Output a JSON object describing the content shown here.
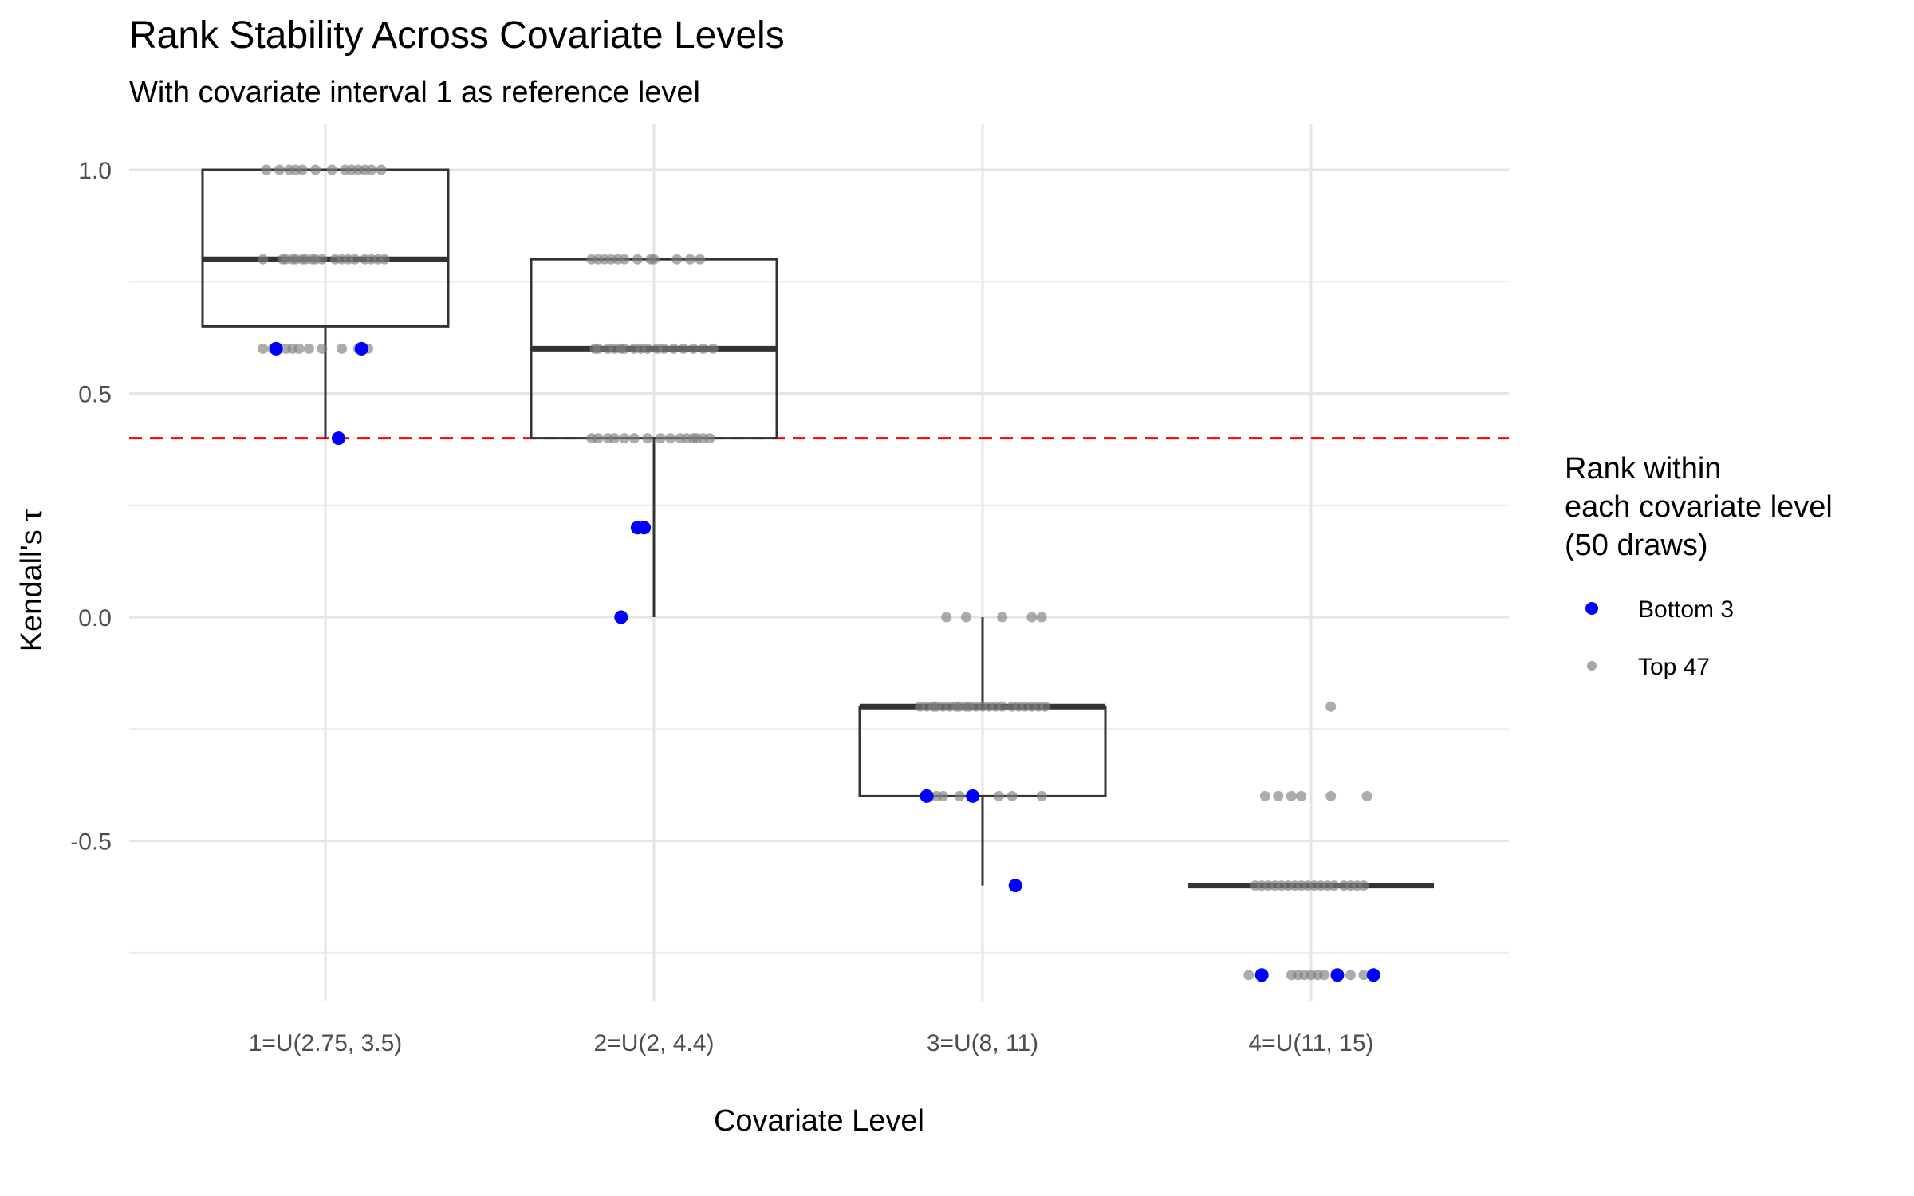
{
  "chart_data": {
    "type": "boxplot",
    "title": "Rank Stability Across Covariate Levels",
    "subtitle": "With covariate interval 1 as reference level",
    "xlabel": "Covariate Level",
    "ylabel": "Kendall's τ",
    "ylim": [
      -0.85,
      1.05
    ],
    "yticks": [
      1.0,
      0.5,
      0.0,
      -0.5
    ],
    "ytick_labels": [
      "1.0",
      "0.5",
      "0.0",
      "-0.5"
    ],
    "minor_yticks": [
      0.75,
      0.25,
      -0.25,
      -0.75
    ],
    "grid": true,
    "reference_line": {
      "y": 0.4,
      "color": "#ff0000",
      "style": "dashed"
    },
    "categories": [
      "1=U(2.75, 3.5)",
      "2=U(2, 4.4)",
      "3=U(8, 11)",
      "4=U(11, 15)"
    ],
    "boxes": [
      {
        "q1": 0.65,
        "median": 0.8,
        "q3": 1.0,
        "whisker_low": 0.4,
        "whisker_high": 1.0
      },
      {
        "q1": 0.4,
        "median": 0.6,
        "q3": 0.8,
        "whisker_low": 0.0,
        "whisker_high": 0.8
      },
      {
        "q1": -0.4,
        "median": -0.2,
        "q3": -0.2,
        "whisker_low": -0.6,
        "whisker_high": 0.0
      },
      {
        "q1": -0.6,
        "median": -0.6,
        "q3": -0.6,
        "whisker_low": -0.6,
        "whisker_high": -0.6
      }
    ],
    "legend": {
      "title": [
        "Rank within",
        "each covariate level",
        "(50 draws)"
      ],
      "placement": "right",
      "entries": [
        {
          "label": "Bottom 3",
          "color": "#0000ff"
        },
        {
          "label": "Top 47",
          "color": "#808080"
        }
      ]
    },
    "series": [
      {
        "name": "Bottom 3",
        "color": "#0000ff",
        "points": [
          [
            1,
            0.6,
            -0.15
          ],
          [
            1,
            0.6,
            0.11
          ],
          [
            1,
            0.4,
            0.04
          ],
          [
            2,
            0.2,
            -0.05
          ],
          [
            2,
            0.2,
            -0.03
          ],
          [
            2,
            0.0,
            -0.1
          ],
          [
            3,
            -0.4,
            -0.17
          ],
          [
            3,
            -0.4,
            -0.03
          ],
          [
            3,
            -0.6,
            0.1
          ],
          [
            4,
            -0.8,
            -0.15
          ],
          [
            4,
            -0.8,
            0.08
          ],
          [
            4,
            -0.8,
            0.19
          ]
        ]
      },
      {
        "name": "Top 47",
        "color": "#808080",
        "points": [
          [
            1,
            1.0,
            -0.18
          ],
          [
            1,
            1.0,
            -0.14
          ],
          [
            1,
            1.0,
            -0.11
          ],
          [
            1,
            1.0,
            -0.09
          ],
          [
            1,
            1.0,
            -0.07
          ],
          [
            1,
            1.0,
            -0.03
          ],
          [
            1,
            1.0,
            0.02
          ],
          [
            1,
            1.0,
            0.06
          ],
          [
            1,
            1.0,
            0.08
          ],
          [
            1,
            1.0,
            0.1
          ],
          [
            1,
            1.0,
            0.12
          ],
          [
            1,
            1.0,
            0.14
          ],
          [
            1,
            1.0,
            0.17
          ],
          [
            1,
            0.8,
            -0.19
          ],
          [
            1,
            0.8,
            -0.13
          ],
          [
            1,
            0.8,
            -0.12
          ],
          [
            1,
            0.8,
            -0.1
          ],
          [
            1,
            0.8,
            -0.09
          ],
          [
            1,
            0.8,
            -0.07
          ],
          [
            1,
            0.8,
            -0.06
          ],
          [
            1,
            0.8,
            -0.04
          ],
          [
            1,
            0.8,
            -0.03
          ],
          [
            1,
            0.8,
            -0.01
          ],
          [
            1,
            0.8,
            0.03
          ],
          [
            1,
            0.8,
            0.05
          ],
          [
            1,
            0.8,
            0.07
          ],
          [
            1,
            0.8,
            0.09
          ],
          [
            1,
            0.8,
            0.12
          ],
          [
            1,
            0.8,
            0.14
          ],
          [
            1,
            0.8,
            0.16
          ],
          [
            1,
            0.8,
            0.18
          ],
          [
            1,
            0.6,
            -0.19
          ],
          [
            1,
            0.6,
            -0.16
          ],
          [
            1,
            0.6,
            -0.12
          ],
          [
            1,
            0.6,
            -0.1
          ],
          [
            1,
            0.6,
            -0.08
          ],
          [
            1,
            0.6,
            -0.05
          ],
          [
            1,
            0.6,
            -0.01
          ],
          [
            1,
            0.6,
            0.05
          ],
          [
            1,
            0.6,
            0.1
          ],
          [
            1,
            0.6,
            0.13
          ],
          [
            2,
            0.8,
            -0.19
          ],
          [
            2,
            0.8,
            -0.17
          ],
          [
            2,
            0.8,
            -0.15
          ],
          [
            2,
            0.8,
            -0.13
          ],
          [
            2,
            0.8,
            -0.11
          ],
          [
            2,
            0.8,
            -0.09
          ],
          [
            2,
            0.8,
            -0.05
          ],
          [
            2,
            0.8,
            -0.01
          ],
          [
            2,
            0.8,
            0.0
          ],
          [
            2,
            0.8,
            0.07
          ],
          [
            2,
            0.8,
            0.11
          ],
          [
            2,
            0.8,
            0.14
          ],
          [
            2,
            0.6,
            -0.18
          ],
          [
            2,
            0.6,
            -0.17
          ],
          [
            2,
            0.6,
            -0.14
          ],
          [
            2,
            0.6,
            -0.12
          ],
          [
            2,
            0.6,
            -0.1
          ],
          [
            2,
            0.6,
            -0.09
          ],
          [
            2,
            0.6,
            -0.06
          ],
          [
            2,
            0.6,
            -0.04
          ],
          [
            2,
            0.6,
            -0.02
          ],
          [
            2,
            0.6,
            0.01
          ],
          [
            2,
            0.6,
            0.03
          ],
          [
            2,
            0.6,
            0.06
          ],
          [
            2,
            0.6,
            0.09
          ],
          [
            2,
            0.6,
            0.12
          ],
          [
            2,
            0.6,
            0.15
          ],
          [
            2,
            0.6,
            0.18
          ],
          [
            2,
            0.4,
            -0.19
          ],
          [
            2,
            0.4,
            -0.17
          ],
          [
            2,
            0.4,
            -0.14
          ],
          [
            2,
            0.4,
            -0.12
          ],
          [
            2,
            0.4,
            -0.09
          ],
          [
            2,
            0.4,
            -0.06
          ],
          [
            2,
            0.4,
            -0.02
          ],
          [
            2,
            0.4,
            0.02
          ],
          [
            2,
            0.4,
            0.05
          ],
          [
            2,
            0.4,
            0.08
          ],
          [
            2,
            0.4,
            0.1
          ],
          [
            2,
            0.4,
            0.12
          ],
          [
            2,
            0.4,
            0.13
          ],
          [
            2,
            0.4,
            0.15
          ],
          [
            2,
            0.4,
            0.17
          ],
          [
            3,
            0.0,
            -0.11
          ],
          [
            3,
            0.0,
            -0.05
          ],
          [
            3,
            0.0,
            0.06
          ],
          [
            3,
            0.0,
            0.15
          ],
          [
            3,
            0.0,
            0.18
          ],
          [
            3,
            -0.2,
            -0.19
          ],
          [
            3,
            -0.2,
            -0.17
          ],
          [
            3,
            -0.2,
            -0.15
          ],
          [
            3,
            -0.2,
            -0.14
          ],
          [
            3,
            -0.2,
            -0.12
          ],
          [
            3,
            -0.2,
            -0.1
          ],
          [
            3,
            -0.2,
            -0.08
          ],
          [
            3,
            -0.2,
            -0.07
          ],
          [
            3,
            -0.2,
            -0.05
          ],
          [
            3,
            -0.2,
            -0.04
          ],
          [
            3,
            -0.2,
            -0.02
          ],
          [
            3,
            -0.2,
            0.0
          ],
          [
            3,
            -0.2,
            0.02
          ],
          [
            3,
            -0.2,
            0.04
          ],
          [
            3,
            -0.2,
            0.06
          ],
          [
            3,
            -0.2,
            0.09
          ],
          [
            3,
            -0.2,
            0.11
          ],
          [
            3,
            -0.2,
            0.13
          ],
          [
            3,
            -0.2,
            0.15
          ],
          [
            3,
            -0.2,
            0.17
          ],
          [
            3,
            -0.2,
            0.19
          ],
          [
            3,
            -0.4,
            -0.16
          ],
          [
            3,
            -0.4,
            -0.14
          ],
          [
            3,
            -0.4,
            -0.12
          ],
          [
            3,
            -0.4,
            -0.07
          ],
          [
            3,
            -0.4,
            0.05
          ],
          [
            3,
            -0.4,
            0.09
          ],
          [
            3,
            -0.4,
            0.18
          ],
          [
            4,
            -0.2,
            0.06
          ],
          [
            4,
            -0.4,
            -0.14
          ],
          [
            4,
            -0.4,
            -0.1
          ],
          [
            4,
            -0.4,
            -0.06
          ],
          [
            4,
            -0.4,
            -0.03
          ],
          [
            4,
            -0.4,
            0.06
          ],
          [
            4,
            -0.4,
            0.17
          ],
          [
            4,
            -0.6,
            -0.17
          ],
          [
            4,
            -0.6,
            -0.15
          ],
          [
            4,
            -0.6,
            -0.13
          ],
          [
            4,
            -0.6,
            -0.11
          ],
          [
            4,
            -0.6,
            -0.09
          ],
          [
            4,
            -0.6,
            -0.07
          ],
          [
            4,
            -0.6,
            -0.05
          ],
          [
            4,
            -0.6,
            -0.03
          ],
          [
            4,
            -0.6,
            -0.01
          ],
          [
            4,
            -0.6,
            0.01
          ],
          [
            4,
            -0.6,
            0.03
          ],
          [
            4,
            -0.6,
            0.05
          ],
          [
            4,
            -0.6,
            0.07
          ],
          [
            4,
            -0.6,
            0.1
          ],
          [
            4,
            -0.6,
            0.12
          ],
          [
            4,
            -0.6,
            0.14
          ],
          [
            4,
            -0.6,
            0.16
          ],
          [
            4,
            -0.8,
            -0.19
          ],
          [
            4,
            -0.8,
            -0.06
          ],
          [
            4,
            -0.8,
            -0.04
          ],
          [
            4,
            -0.8,
            -0.02
          ],
          [
            4,
            -0.8,
            0.0
          ],
          [
            4,
            -0.8,
            0.02
          ],
          [
            4,
            -0.8,
            0.04
          ],
          [
            4,
            -0.8,
            0.12
          ],
          [
            4,
            -0.8,
            0.16
          ]
        ]
      }
    ]
  }
}
